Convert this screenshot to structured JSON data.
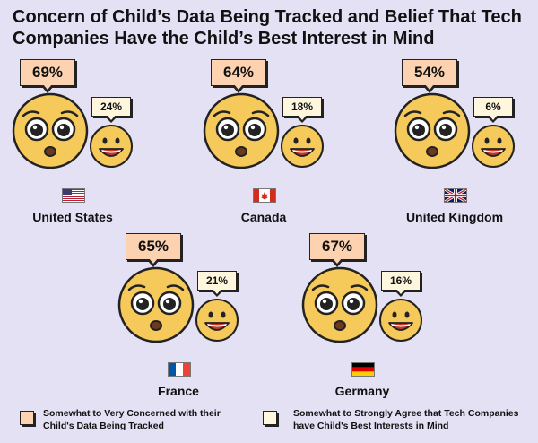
{
  "chart_data": {
    "type": "bar",
    "title": "Concern of Child’s Data Being Tracked and Belief That Tech Companies Have the Child’s Best Interest in Mind",
    "categories": [
      "United States",
      "Canada",
      "United Kingdom",
      "France",
      "Germany"
    ],
    "series": [
      {
        "name": "Somewhat to Very Concerned with their Child's Data Being Tracked",
        "values": [
          69,
          64,
          54,
          65,
          67
        ],
        "labels": [
          "69%",
          "64%",
          "54%",
          "65%",
          "67%"
        ],
        "color": "#fcd2b0"
      },
      {
        "name": "Somewhat to Strongly Agree that Tech Companies have Child's Best Interests in Mind",
        "values": [
          24,
          18,
          6,
          21,
          16
        ],
        "labels": [
          "24%",
          "18%",
          "6%",
          "21%",
          "16%"
        ],
        "color": "#fff7dd"
      }
    ],
    "unit": "%",
    "legend_position": "bottom"
  },
  "colors": {
    "background": "#e4e1f5",
    "face_fill": "#f5c95a",
    "face_stroke": "#222222",
    "concern_bubble": "#fcd2b0",
    "agree_bubble": "#fff7dd"
  },
  "icons": [
    "worried-face-icon",
    "smiling-face-icon",
    "flag-icon"
  ]
}
